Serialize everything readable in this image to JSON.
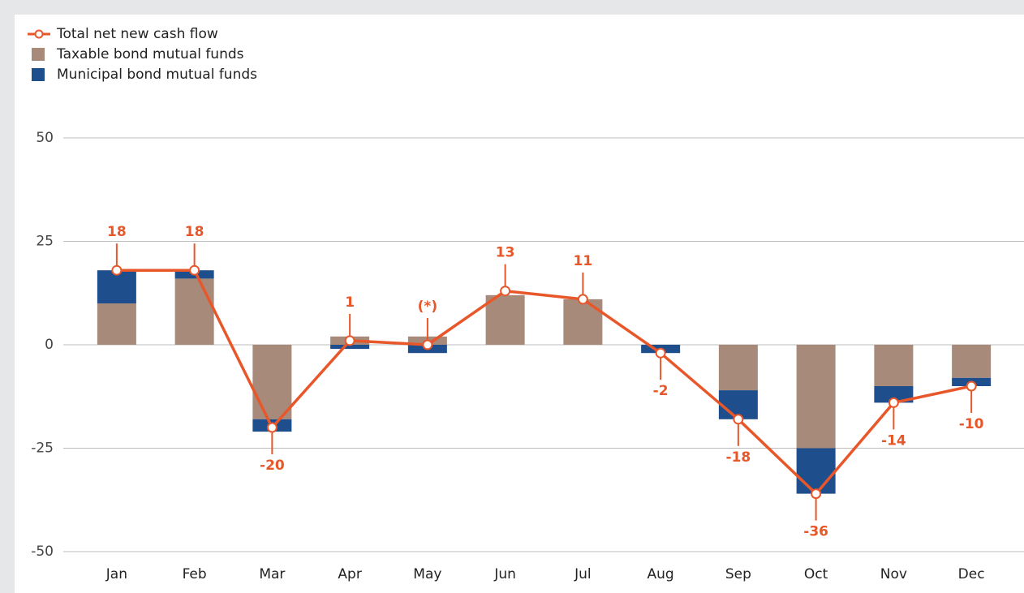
{
  "chart_data": {
    "type": "bar",
    "categories": [
      "Jan",
      "Feb",
      "Mar",
      "Apr",
      "May",
      "Jun",
      "Jul",
      "Aug",
      "Sep",
      "Oct",
      "Nov",
      "Dec"
    ],
    "series": [
      {
        "name": "Total net new cash flow",
        "type": "line",
        "color": "#e8572a",
        "values": [
          18,
          18,
          -20,
          1,
          0,
          13,
          11,
          -2,
          -18,
          -36,
          -14,
          -10
        ],
        "value_labels": [
          "18",
          "18",
          "-20",
          "1",
          "(*)",
          "13",
          "11",
          "-2",
          "-18",
          "-36",
          "-14",
          "-10"
        ]
      },
      {
        "name": "Taxable bond mutual funds",
        "type": "bar",
        "color": "#a88a7a",
        "values": [
          10,
          16,
          -18,
          2,
          2,
          12,
          11,
          0,
          -11,
          -25,
          -10,
          -8
        ]
      },
      {
        "name": "Municipal bond mutual funds",
        "type": "bar",
        "color": "#1f4e8c",
        "values": [
          8,
          2,
          -3,
          -1,
          -2,
          0,
          0,
          -2,
          -7,
          -11,
          -4,
          -2
        ]
      }
    ],
    "ylim": [
      -50,
      50
    ],
    "yticks": [
      -50,
      -25,
      0,
      25,
      50
    ],
    "grid": true,
    "legend": "top-left"
  }
}
